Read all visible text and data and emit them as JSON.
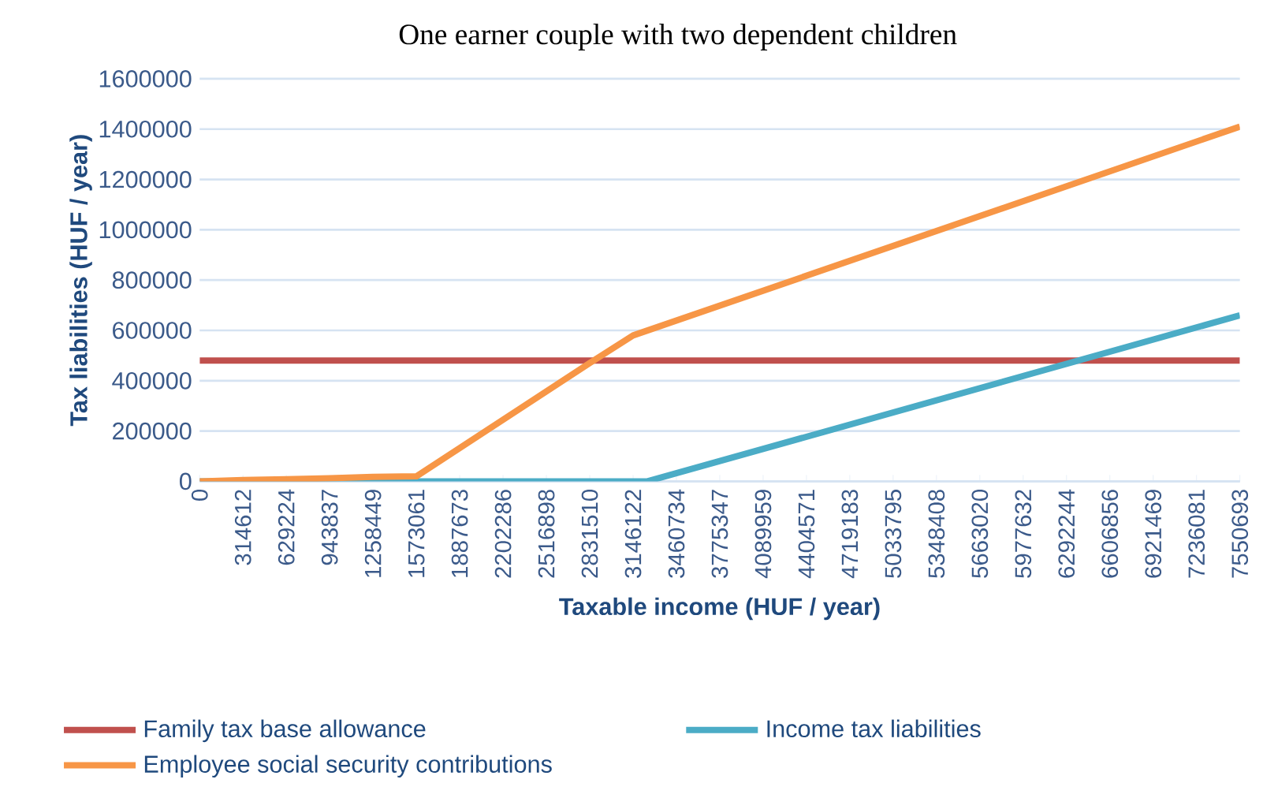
{
  "chart_data": {
    "type": "line",
    "title": "One earner couple with two dependent children",
    "xlabel": "Taxable income (HUF / year)",
    "ylabel": "Tax liabilities (HUF / year)",
    "xlim": [
      0,
      7550693
    ],
    "xticks": [
      0,
      314612,
      629224,
      943837,
      1258449,
      1573061,
      1887673,
      2202286,
      2516898,
      2831510,
      3146122,
      3460734,
      3775347,
      4089959,
      4404571,
      4719183,
      5033795,
      5348408,
      5663020,
      5977632,
      6292244,
      6606856,
      6921469,
      7236081,
      7550693
    ],
    "ylim": [
      0,
      1600000
    ],
    "yticks": [
      0,
      200000,
      400000,
      600000,
      800000,
      1000000,
      1200000,
      1400000,
      1600000
    ],
    "grid": "y",
    "legend": "bottom",
    "marker": "none",
    "line_style": "solid",
    "series": [
      {
        "name": "Family tax base allowance",
        "color": "#c0504d",
        "x": [
          0,
          7550693
        ],
        "values": [
          480000,
          480000
        ]
      },
      {
        "name": "Income tax liabilities",
        "color": "#4bacc6",
        "x": [
          0,
          3250000,
          7550693
        ],
        "values": [
          0,
          0,
          660000
        ]
      },
      {
        "name": "Employee social security contributions",
        "color": "#f79646",
        "x": [
          0,
          314612,
          629224,
          943837,
          1258449,
          1573061,
          2831510,
          3146122,
          7550693
        ],
        "values": [
          0,
          5000,
          8000,
          12000,
          18000,
          20000,
          470000,
          580000,
          1410000
        ]
      }
    ]
  }
}
